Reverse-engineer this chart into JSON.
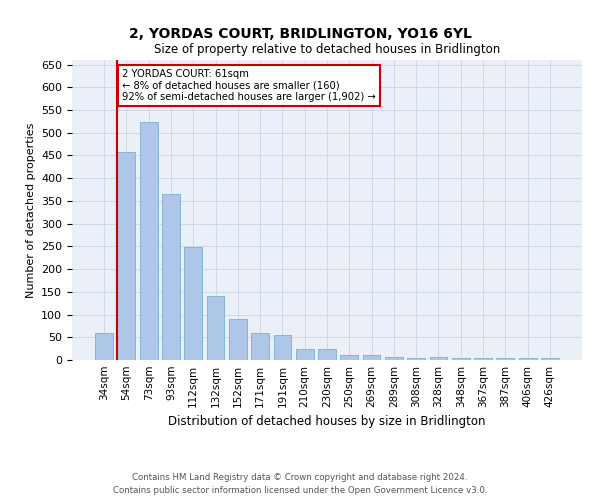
{
  "title": "2, YORDAS COURT, BRIDLINGTON, YO16 6YL",
  "subtitle": "Size of property relative to detached houses in Bridlington",
  "xlabel": "Distribution of detached houses by size in Bridlington",
  "ylabel": "Number of detached properties",
  "categories": [
    "34sqm",
    "54sqm",
    "73sqm",
    "93sqm",
    "112sqm",
    "132sqm",
    "152sqm",
    "171sqm",
    "191sqm",
    "210sqm",
    "230sqm",
    "250sqm",
    "269sqm",
    "289sqm",
    "308sqm",
    "328sqm",
    "348sqm",
    "367sqm",
    "387sqm",
    "406sqm",
    "426sqm"
  ],
  "values": [
    60,
    457,
    523,
    365,
    248,
    140,
    91,
    59,
    55,
    25,
    24,
    10,
    11,
    7,
    5,
    6,
    5,
    4,
    5,
    4,
    4
  ],
  "bar_color": "#aec6e8",
  "bar_edge_color": "#7aafd4",
  "property_line_label": "2 YORDAS COURT: 61sqm",
  "annotation_line1": "← 8% of detached houses are smaller (160)",
  "annotation_line2": "92% of semi-detached houses are larger (1,902) →",
  "annotation_box_color": "#ffffff",
  "annotation_box_edge_color": "#cc0000",
  "vline_color": "#cc0000",
  "ylim": [
    0,
    660
  ],
  "yticks": [
    0,
    50,
    100,
    150,
    200,
    250,
    300,
    350,
    400,
    450,
    500,
    550,
    600,
    650
  ],
  "grid_color": "#c8d4e8",
  "bg_color": "#eaeff8",
  "footer_line1": "Contains HM Land Registry data © Crown copyright and database right 2024.",
  "footer_line2": "Contains public sector information licensed under the Open Government Licence v3.0."
}
